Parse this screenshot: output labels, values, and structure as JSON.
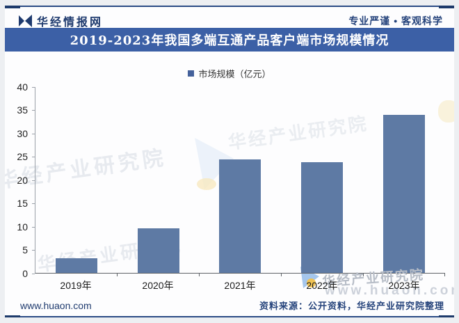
{
  "header": {
    "brand": "华经情报网",
    "slogan": "专业严谨 • 客观科学"
  },
  "title": "2019-2023年我国多端互通产品客户端市场规模情况",
  "legend": {
    "label": "市场规模（亿元）",
    "marker_color": "#44619b"
  },
  "chart_data": {
    "type": "bar",
    "title": "2019-2023年我国多端互通产品客户端市场规模情况",
    "series_name": "市场规模（亿元）",
    "categories": [
      "2019年",
      "2020年",
      "2021年",
      "2022年",
      "2023年"
    ],
    "values": [
      3.1,
      9.5,
      24.4,
      23.8,
      33.9
    ],
    "ylim": [
      0,
      40
    ],
    "ytick_step": 5,
    "yticks": [
      "40",
      "35",
      "30",
      "25",
      "20",
      "15",
      "10",
      "5",
      "0"
    ],
    "grid": false,
    "legend_position": "top",
    "bar_color": "#5e7aa4"
  },
  "watermarks": {
    "diagonal_text": "华经产业研究院",
    "site_text": "www.huaon.com"
  },
  "footer": {
    "site": "www.huaon.com",
    "source": "资料来源：公开资料，华经产业研究院整理"
  },
  "colors": {
    "title_bar": "#3c60a6",
    "bar": "#5e7aa4",
    "navy_text": "#1e3a6e",
    "frame_line": "#2a4a85"
  }
}
